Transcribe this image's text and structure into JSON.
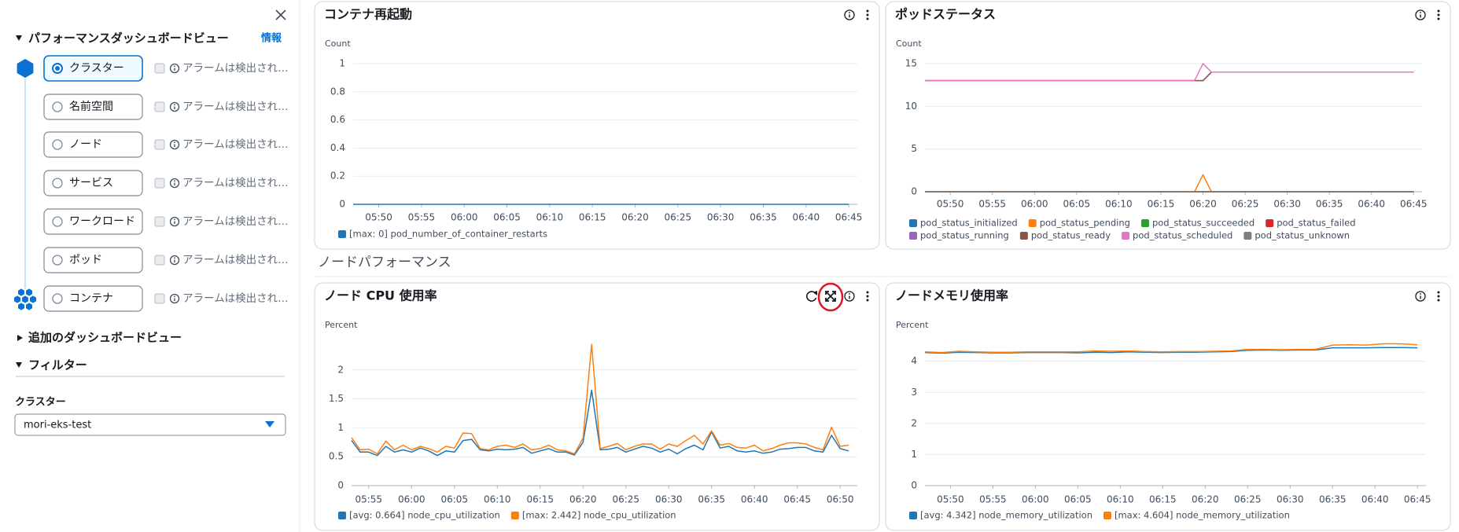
{
  "sidebar": {
    "heading": "パフォーマンスダッシュボードビュー",
    "info": "情報",
    "levels": [
      {
        "label": "クラスター",
        "alarm": "アラームは検出され…",
        "selected": true
      },
      {
        "label": "名前空間",
        "alarm": "アラームは検出され…",
        "selected": false
      },
      {
        "label": "ノード",
        "alarm": "アラームは検出され…",
        "selected": false
      },
      {
        "label": "サービス",
        "alarm": "アラームは検出され…",
        "selected": false
      },
      {
        "label": "ワークロード",
        "alarm": "アラームは検出され…",
        "selected": false
      },
      {
        "label": "ポッド",
        "alarm": "アラームは検出され…",
        "selected": false
      },
      {
        "label": "コンテナ",
        "alarm": "アラームは検出され…",
        "selected": false
      }
    ],
    "additional": "追加のダッシュボードビュー",
    "filter": "フィルター",
    "filter_label": "クラスター",
    "filter_value": "mori-eks-test"
  },
  "section": "ノードパフォーマンス",
  "chart_data": [
    {
      "type": "line",
      "title": "コンテナ再起動",
      "y_label": "Count",
      "x": [
        "05:47",
        "06:45"
      ],
      "xlim": [
        "05:47",
        "06:46"
      ],
      "xticks": [
        "05:50",
        "05:55",
        "06:00",
        "06:05",
        "06:10",
        "06:15",
        "06:20",
        "06:25",
        "06:30",
        "06:35",
        "06:40",
        "06:45"
      ],
      "ylim": [
        0,
        1
      ],
      "yticks": [
        0,
        0.2,
        0.4,
        0.6,
        0.8,
        1
      ],
      "grid": true,
      "series": [
        {
          "name": "[max: 0] pod_number_of_container_restarts",
          "color": "#1f77b4",
          "values": [
            0,
            0
          ]
        }
      ]
    },
    {
      "type": "line",
      "title": "ポッドステータス",
      "y_label": "Count",
      "x": [
        "05:47",
        "06:19",
        "06:20",
        "06:21",
        "06:45"
      ],
      "xlim": [
        "05:47",
        "06:46"
      ],
      "xticks": [
        "05:50",
        "05:55",
        "06:00",
        "06:05",
        "06:10",
        "06:15",
        "06:20",
        "06:25",
        "06:30",
        "06:35",
        "06:40",
        "06:45"
      ],
      "ylim": [
        0,
        16
      ],
      "yticks": [
        0,
        5,
        10,
        15
      ],
      "grid": true,
      "series": [
        {
          "name": "pod_status_initialized",
          "color": "#1f77b4",
          "values": [
            0,
            0,
            0,
            0,
            0
          ]
        },
        {
          "name": "pod_status_pending",
          "color": "#ff7f0e",
          "values": [
            0,
            0,
            2,
            0,
            0
          ]
        },
        {
          "name": "pod_status_succeeded",
          "color": "#2ca02c",
          "values": [
            0,
            0,
            0,
            0,
            0
          ]
        },
        {
          "name": "pod_status_failed",
          "color": "#d62728",
          "values": [
            0,
            0,
            0,
            0,
            0
          ]
        },
        {
          "name": "pod_status_running",
          "color": "#9467bd",
          "values": [
            13,
            13,
            13,
            14,
            14
          ]
        },
        {
          "name": "pod_status_ready",
          "color": "#8c564b",
          "values": [
            13,
            13,
            13,
            14,
            14
          ]
        },
        {
          "name": "pod_status_scheduled",
          "color": "#e377c2",
          "values": [
            13,
            13,
            15,
            14,
            14
          ]
        },
        {
          "name": "pod_status_unknown",
          "color": "#7f7f7f",
          "values": [
            0,
            0,
            0,
            0,
            0
          ]
        }
      ]
    },
    {
      "type": "line",
      "title": "ノード CPU 使用率",
      "y_label": "Percent",
      "x": [
        "05:53",
        "05:54",
        "05:55",
        "05:56",
        "05:57",
        "05:58",
        "05:59",
        "06:00",
        "06:01",
        "06:02",
        "06:03",
        "06:04",
        "06:05",
        "06:06",
        "06:07",
        "06:08",
        "06:09",
        "06:10",
        "06:11",
        "06:12",
        "06:13",
        "06:14",
        "06:15",
        "06:16",
        "06:17",
        "06:18",
        "06:19",
        "06:20",
        "06:21",
        "06:22",
        "06:23",
        "06:24",
        "06:25",
        "06:26",
        "06:27",
        "06:28",
        "06:29",
        "06:30",
        "06:31",
        "06:32",
        "06:33",
        "06:34",
        "06:35",
        "06:36",
        "06:37",
        "06:38",
        "06:39",
        "06:40",
        "06:41",
        "06:42",
        "06:43",
        "06:44",
        "06:45",
        "06:46",
        "06:47",
        "06:48",
        "06:49",
        "06:50",
        "06:51"
      ],
      "xlim": [
        "05:53",
        "06:52"
      ],
      "xticks": [
        "05:55",
        "06:00",
        "06:05",
        "06:10",
        "06:15",
        "06:20",
        "06:25",
        "06:30",
        "06:35",
        "06:40",
        "06:45",
        "06:50"
      ],
      "ylim": [
        0,
        2.5
      ],
      "yticks": [
        0,
        0.5,
        1,
        1.5,
        2
      ],
      "grid": true,
      "series": [
        {
          "name": "[avg: 0.664] node_cpu_utilization",
          "color": "#1f77b4",
          "values": [
            0.78,
            0.58,
            0.58,
            0.52,
            0.68,
            0.58,
            0.62,
            0.58,
            0.65,
            0.6,
            0.52,
            0.6,
            0.58,
            0.78,
            0.8,
            0.62,
            0.6,
            0.63,
            0.62,
            0.63,
            0.66,
            0.56,
            0.6,
            0.64,
            0.58,
            0.58,
            0.53,
            0.75,
            1.65,
            0.62,
            0.63,
            0.66,
            0.58,
            0.63,
            0.68,
            0.65,
            0.58,
            0.63,
            0.55,
            0.64,
            0.7,
            0.62,
            0.93,
            0.65,
            0.68,
            0.6,
            0.58,
            0.6,
            0.56,
            0.58,
            0.63,
            0.64,
            0.66,
            0.66,
            0.6,
            0.58,
            0.87,
            0.64,
            0.6
          ]
        },
        {
          "name": "[max: 2.442] node_cpu_utilization",
          "color": "#ff7f0e",
          "values": [
            0.83,
            0.62,
            0.63,
            0.55,
            0.77,
            0.62,
            0.7,
            0.62,
            0.68,
            0.64,
            0.58,
            0.68,
            0.65,
            0.91,
            0.9,
            0.64,
            0.62,
            0.68,
            0.7,
            0.66,
            0.72,
            0.62,
            0.64,
            0.7,
            0.62,
            0.6,
            0.55,
            0.82,
            2.442,
            0.64,
            0.68,
            0.73,
            0.62,
            0.68,
            0.72,
            0.72,
            0.63,
            0.72,
            0.68,
            0.78,
            0.87,
            0.72,
            0.95,
            0.7,
            0.73,
            0.66,
            0.65,
            0.7,
            0.6,
            0.64,
            0.7,
            0.74,
            0.74,
            0.72,
            0.66,
            0.62,
            1.01,
            0.68,
            0.7
          ]
        }
      ]
    },
    {
      "type": "line",
      "title": "ノードメモリ使用率",
      "y_label": "Percent",
      "x": [
        "05:47",
        "05:49",
        "05:51",
        "05:53",
        "05:55",
        "05:57",
        "05:59",
        "06:01",
        "06:03",
        "06:05",
        "06:07",
        "06:09",
        "06:11",
        "06:13",
        "06:15",
        "06:17",
        "06:19",
        "06:21",
        "06:23",
        "06:25",
        "06:27",
        "06:29",
        "06:31",
        "06:33",
        "06:35",
        "06:37",
        "06:39",
        "06:41",
        "06:43",
        "06:45"
      ],
      "xlim": [
        "05:47",
        "06:46"
      ],
      "xticks": [
        "05:50",
        "05:55",
        "06:00",
        "06:05",
        "06:10",
        "06:15",
        "06:20",
        "06:25",
        "06:30",
        "06:35",
        "06:40",
        "06:45"
      ],
      "ylim": [
        0,
        4.8
      ],
      "yticks": [
        0,
        1,
        2,
        3,
        4
      ],
      "grid": true,
      "series": [
        {
          "name": "[avg: 4.342] node_memory_utilization",
          "color": "#1f77b4",
          "values": [
            4.28,
            4.26,
            4.29,
            4.28,
            4.27,
            4.27,
            4.28,
            4.28,
            4.28,
            4.27,
            4.29,
            4.28,
            4.3,
            4.29,
            4.28,
            4.29,
            4.29,
            4.3,
            4.31,
            4.35,
            4.36,
            4.35,
            4.36,
            4.36,
            4.43,
            4.43,
            4.43,
            4.44,
            4.44,
            4.43
          ]
        },
        {
          "name": "[max: 4.604] node_memory_utilization",
          "color": "#ff7f0e",
          "values": [
            4.3,
            4.28,
            4.32,
            4.3,
            4.29,
            4.29,
            4.3,
            4.3,
            4.3,
            4.3,
            4.33,
            4.32,
            4.33,
            4.31,
            4.3,
            4.31,
            4.31,
            4.32,
            4.33,
            4.38,
            4.38,
            4.37,
            4.38,
            4.38,
            4.52,
            4.53,
            4.52,
            4.56,
            4.56,
            4.53
          ]
        }
      ]
    }
  ]
}
